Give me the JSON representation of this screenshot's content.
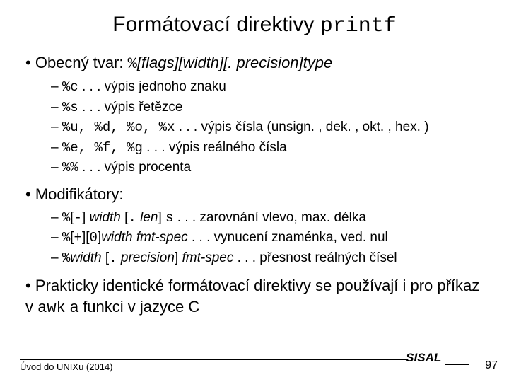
{
  "title_pre": "Formátovací direktivy ",
  "title_code": "printf",
  "b1": {
    "pre": "Obecný tvar: ",
    "code": "%",
    "tail_italic": "[flags][width][. precision]type"
  },
  "sub1": [
    {
      "code": "%c",
      "text": " . . . výpis jednoho znaku"
    },
    {
      "code": "%s",
      "text": " . . . výpis řetězce"
    },
    {
      "code": "%u, %d, %o, %x",
      "text": " . . . výpis čísla (unsign. , dek. , okt. , hex. )"
    },
    {
      "code": "%e, %f, %g",
      "text": " . . . výpis reálného čísla"
    },
    {
      "code": "%%",
      "text": " . . . výpis procenta"
    }
  ],
  "b2": "Modifikátory:",
  "sub2": [
    {
      "parts": [
        {
          "t": "code",
          "v": "%"
        },
        {
          "t": "txt",
          "v": "["
        },
        {
          "t": "code",
          "v": "-"
        },
        {
          "t": "txt",
          "v": "] "
        },
        {
          "t": "ital",
          "v": "width"
        },
        {
          "t": "txt",
          "v": " ["
        },
        {
          "t": "code",
          "v": "."
        },
        {
          "t": "txt",
          "v": " "
        },
        {
          "t": "ital",
          "v": "len"
        },
        {
          "t": "txt",
          "v": "] "
        },
        {
          "t": "code",
          "v": "s"
        },
        {
          "t": "txt",
          "v": "  . . . zarovnání vlevo, max. délka"
        }
      ]
    },
    {
      "parts": [
        {
          "t": "code",
          "v": "%"
        },
        {
          "t": "txt",
          "v": "["
        },
        {
          "t": "code",
          "v": "+"
        },
        {
          "t": "txt",
          "v": "]["
        },
        {
          "t": "code",
          "v": "0"
        },
        {
          "t": "txt",
          "v": "]"
        },
        {
          "t": "ital",
          "v": "width fmt-spec"
        },
        {
          "t": "txt",
          "v": " . . . vynucení znaménka, ved. nul"
        }
      ]
    },
    {
      "parts": [
        {
          "t": "code",
          "v": "%"
        },
        {
          "t": "ital",
          "v": "width"
        },
        {
          "t": "txt",
          "v": " ["
        },
        {
          "t": "code",
          "v": "."
        },
        {
          "t": "txt",
          "v": " "
        },
        {
          "t": "ital",
          "v": "precision"
        },
        {
          "t": "txt",
          "v": "] "
        },
        {
          "t": "ital",
          "v": "fmt-spec"
        },
        {
          "t": "txt",
          "v": " . . . přesnost reálných čísel"
        }
      ]
    }
  ],
  "b3_pre": "Prakticky identické formátovací direktivy se používají i pro příkaz v ",
  "b3_code": "awk",
  "b3_post": " a funkci v jazyce C",
  "footer_left": "Úvod do UNIXu (2014)",
  "footer_brand": "SISAL",
  "footer_page": "97"
}
